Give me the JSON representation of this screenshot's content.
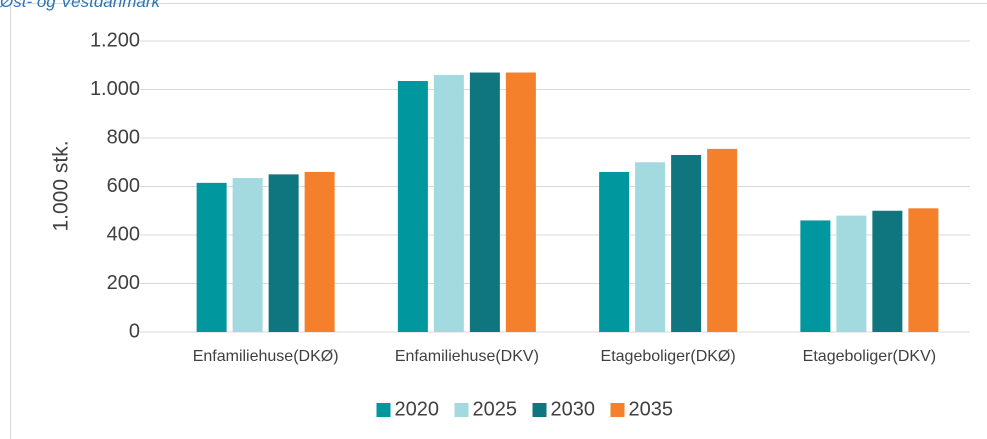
{
  "chart_data": {
    "type": "bar",
    "title": "Øst- og Vestdanmark",
    "ylabel": "1.000 stk.",
    "categories": [
      "Enfamiliehuse(DKØ)",
      "Enfamiliehuse(DKV)",
      "Etageboliger(DKØ)",
      "Etageboliger(DKV)"
    ],
    "series": [
      {
        "name": "2020",
        "color": "#00979f",
        "values": [
          615,
          1035,
          660,
          460
        ]
      },
      {
        "name": "2025",
        "color": "#a3dadf",
        "values": [
          635,
          1060,
          700,
          480
        ]
      },
      {
        "name": "2030",
        "color": "#0f7680",
        "values": [
          650,
          1070,
          730,
          500
        ]
      },
      {
        "name": "2035",
        "color": "#f4802b",
        "values": [
          660,
          1070,
          755,
          510
        ]
      }
    ],
    "ylim": [
      0,
      1200
    ],
    "yticks": [
      0,
      200,
      400,
      600,
      800,
      {
        "value": 1000,
        "label": "1.000"
      },
      {
        "value": 1200,
        "label": "1.200"
      }
    ],
    "grid": true,
    "legend": "bottom"
  }
}
